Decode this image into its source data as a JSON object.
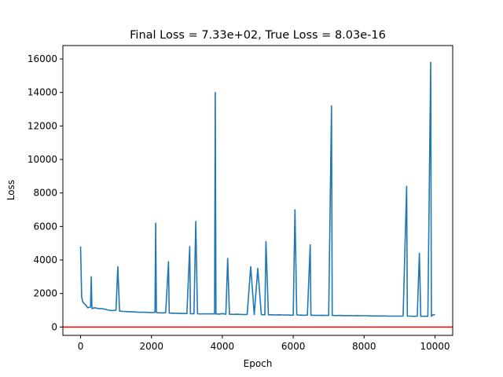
{
  "chart_data": {
    "type": "line",
    "title": "Final Loss = 7.33e+02, True Loss = 8.03e-16",
    "xlabel": "Epoch",
    "ylabel": "Loss",
    "xlim": [
      -500,
      10500
    ],
    "ylim": [
      -500,
      16800
    ],
    "xticks": [
      0,
      2000,
      4000,
      6000,
      8000,
      10000
    ],
    "yticks": [
      0,
      2000,
      4000,
      6000,
      8000,
      10000,
      12000,
      14000,
      16000
    ],
    "grid": false,
    "legend": "none",
    "series": [
      {
        "color": "#1f77b4",
        "x": [
          0,
          30,
          60,
          100,
          150,
          200,
          280,
          300,
          320,
          400,
          500,
          600,
          700,
          800,
          900,
          1000,
          1050,
          1100,
          1200,
          1300,
          1400,
          1500,
          1600,
          1700,
          1800,
          1900,
          2000,
          2100,
          2120,
          2140,
          2200,
          2300,
          2400,
          2480,
          2500,
          2600,
          2700,
          2800,
          2900,
          3000,
          3080,
          3100,
          3200,
          3250,
          3300,
          3400,
          3500,
          3600,
          3700,
          3780,
          3800,
          3820,
          3900,
          4000,
          4100,
          4150,
          4200,
          4300,
          4400,
          4500,
          4600,
          4700,
          4800,
          4900,
          5000,
          5100,
          5200,
          5230,
          5300,
          5400,
          5500,
          5600,
          5700,
          5800,
          5900,
          6000,
          6050,
          6100,
          6200,
          6300,
          6400,
          6480,
          6500,
          6600,
          6700,
          6800,
          6900,
          7000,
          7080,
          7100,
          7200,
          7300,
          7400,
          7500,
          7600,
          7700,
          7800,
          7900,
          8000,
          8100,
          8200,
          8300,
          8400,
          8500,
          8600,
          8700,
          8800,
          8900,
          9000,
          9100,
          9200,
          9220,
          9300,
          9400,
          9500,
          9560,
          9600,
          9700,
          9800,
          9880,
          9900,
          9950,
          10000
        ],
        "y": [
          4800,
          1800,
          1500,
          1400,
          1300,
          1150,
          1200,
          3000,
          1100,
          1150,
          1100,
          1100,
          1050,
          1000,
          980,
          1000,
          3600,
          950,
          930,
          920,
          910,
          900,
          890,
          880,
          880,
          870,
          860,
          880,
          6200,
          860,
          850,
          840,
          850,
          3900,
          830,
          820,
          820,
          810,
          810,
          800,
          4800,
          790,
          790,
          6300,
          790,
          780,
          790,
          780,
          790,
          780,
          14000,
          780,
          770,
          800,
          760,
          4100,
          760,
          750,
          760,
          750,
          740,
          750,
          3600,
          740,
          3500,
          740,
          730,
          5100,
          730,
          730,
          720,
          730,
          720,
          720,
          710,
          700,
          7000,
          720,
          710,
          700,
          710,
          4900,
          700,
          700,
          690,
          700,
          690,
          690,
          13200,
          690,
          680,
          690,
          680,
          680,
          680,
          670,
          680,
          670,
          670,
          670,
          660,
          660,
          660,
          660,
          660,
          650,
          650,
          650,
          650,
          650,
          8400,
          650,
          650,
          640,
          650,
          4400,
          640,
          640,
          640,
          15800,
          640,
          740,
          733
        ]
      }
    ],
    "reference_line": {
      "y": 8.03e-16,
      "color": "#ff0000"
    }
  }
}
